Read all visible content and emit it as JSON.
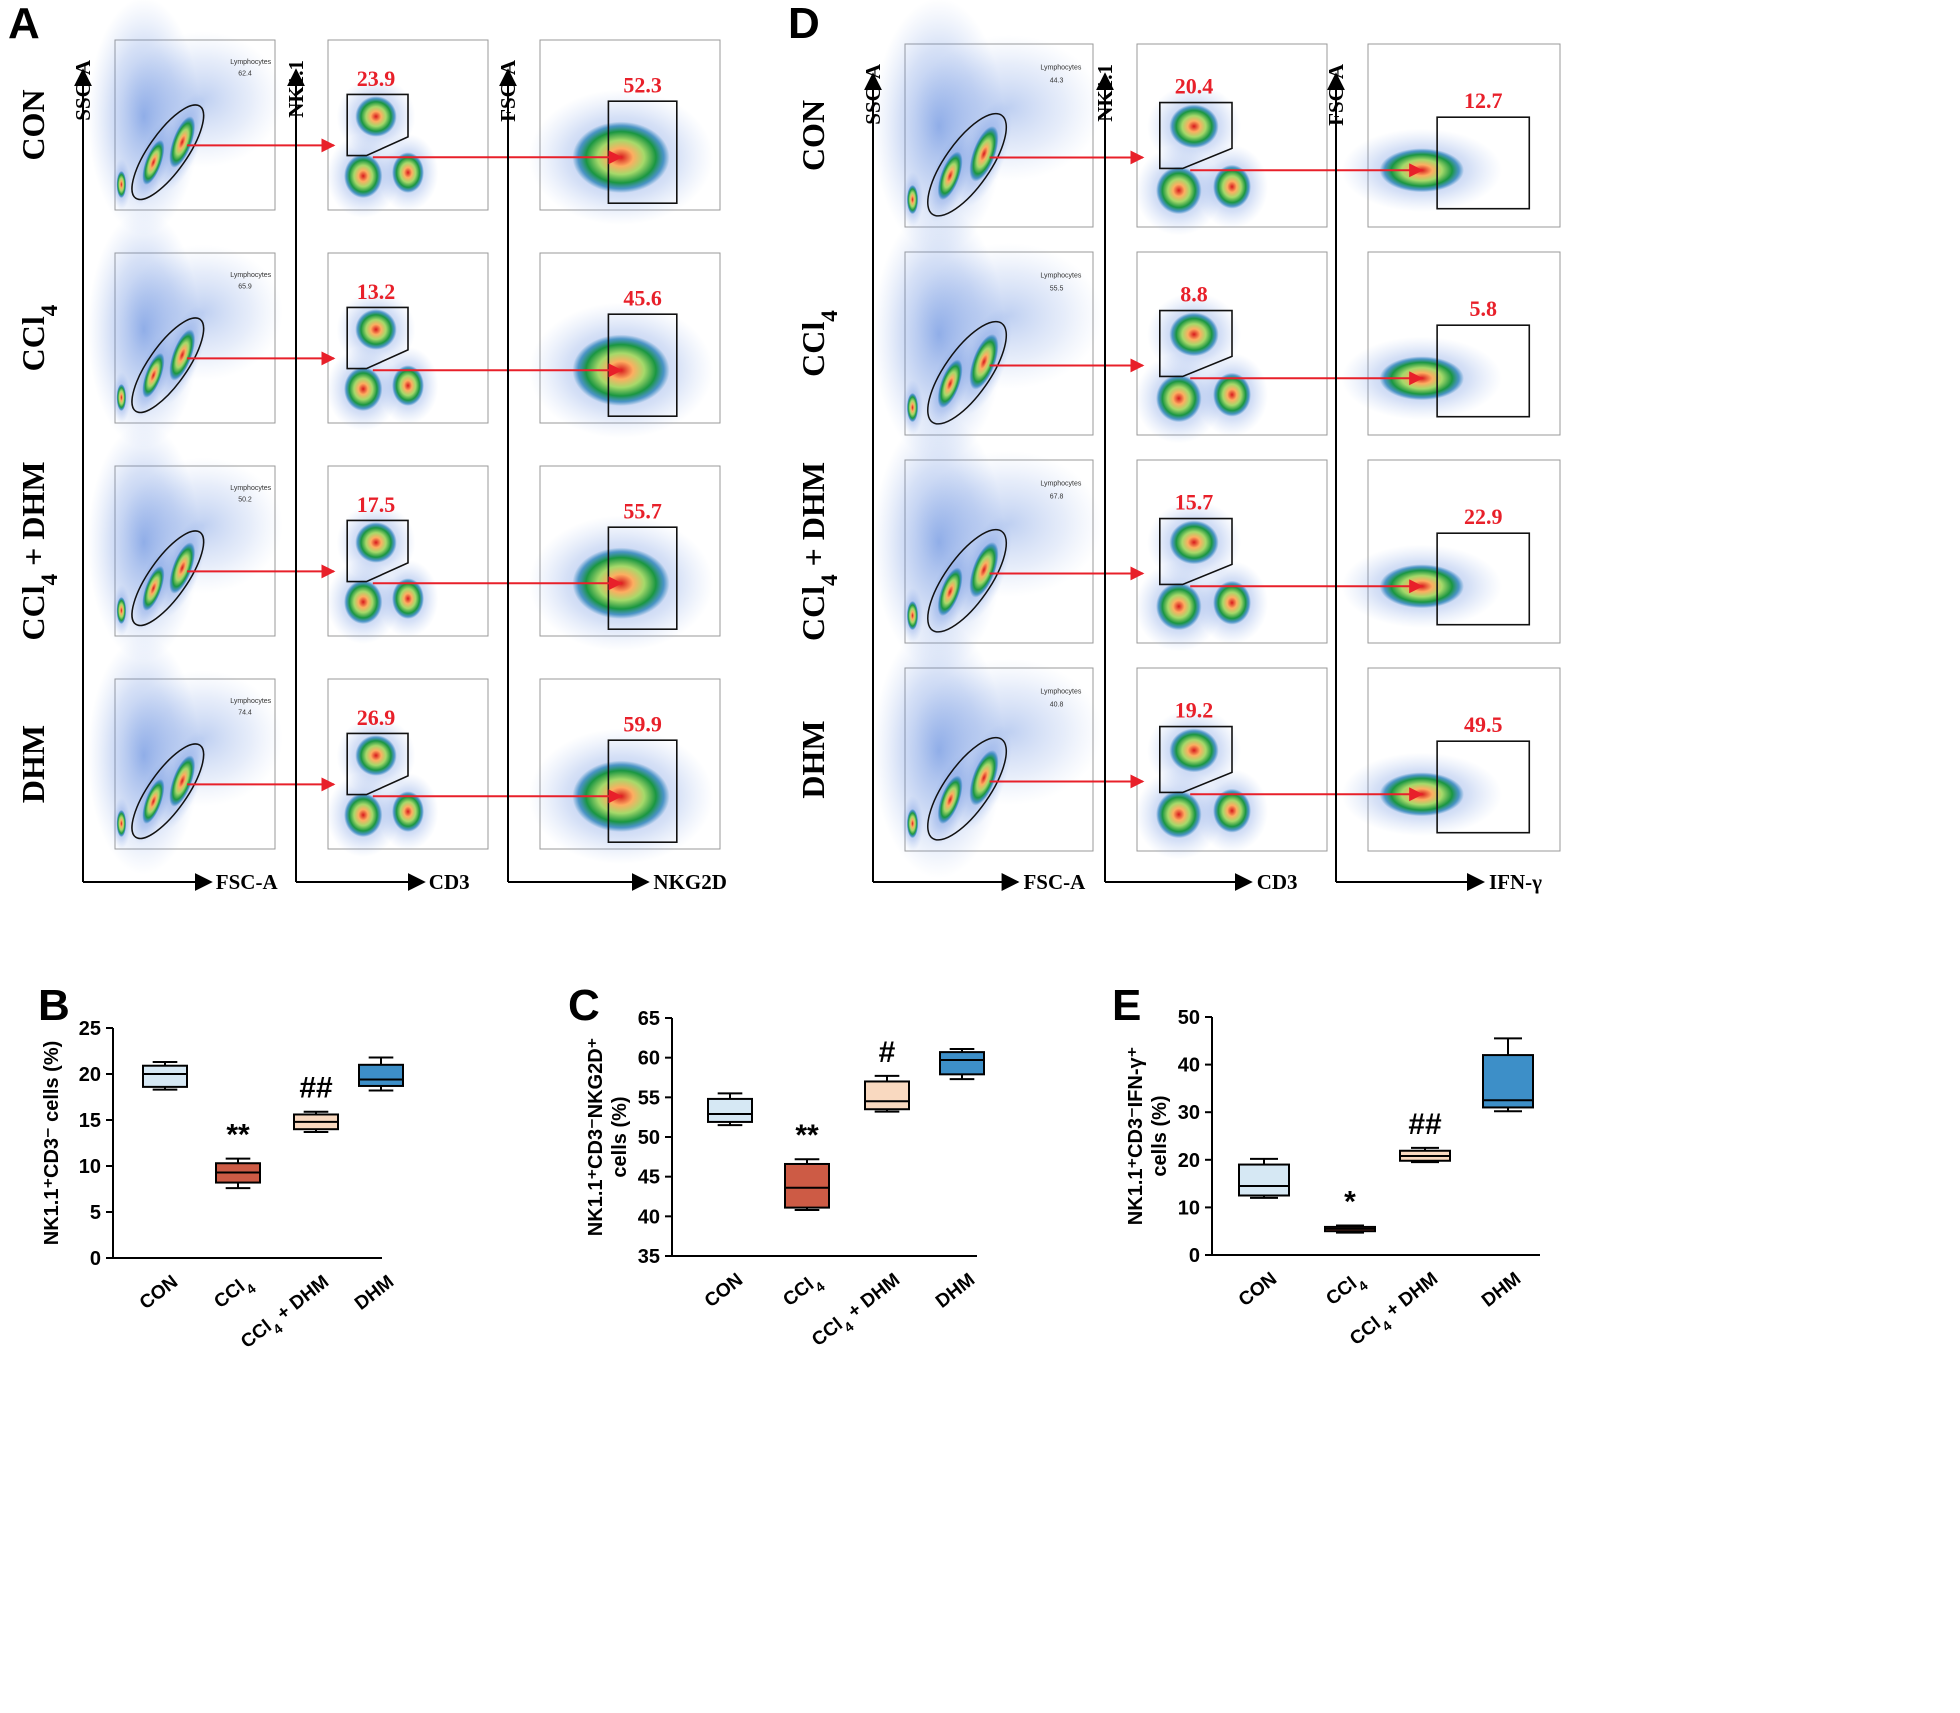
{
  "panels": {
    "A": "A",
    "D": "D",
    "B": "B",
    "C": "C",
    "E": "E"
  },
  "colors": {
    "CON": "#d6e8f4",
    "CCl4": "#cd5b45",
    "CCl4_DHM": "#f9d9c0",
    "DHM": "#3d8fc8",
    "gate_arrow": "#e8202a"
  },
  "flow_A": {
    "groups": [
      {
        "label": "CON",
        "lymph_label": "Lymphocytes",
        "lymph_pct": "62.4",
        "nk_pct": "23.9",
        "nkg2d_pct": "52.3"
      },
      {
        "label": "CCl4",
        "lymph_label": "Lymphocytes",
        "lymph_pct": "65.9",
        "nk_pct": "13.2",
        "nkg2d_pct": "45.6"
      },
      {
        "label": "CCl4 + DHM",
        "lymph_label": "Lymphocytes",
        "lymph_pct": "50.2",
        "nk_pct": "17.5",
        "nkg2d_pct": "55.7"
      },
      {
        "label": "DHM",
        "lymph_label": "Lymphocytes",
        "lymph_pct": "74.4",
        "nk_pct": "26.9",
        "nkg2d_pct": "59.9"
      }
    ],
    "axes": {
      "c1_y": "SSC-A",
      "c1_x": "FSC-A",
      "c2_y": "NK1.1",
      "c2_x": "CD3",
      "c3_y": "FSC-A",
      "c3_x": "NKG2D"
    }
  },
  "flow_D": {
    "groups": [
      {
        "label": "CON",
        "lymph_label": "Lymphocytes",
        "lymph_pct": "44.3",
        "nk_pct": "20.4",
        "ifn_pct": "12.7"
      },
      {
        "label": "CCl4",
        "lymph_label": "Lymphocytes",
        "lymph_pct": "55.5",
        "nk_pct": "8.8",
        "ifn_pct": "5.8"
      },
      {
        "label": "CCl4 + DHM",
        "lymph_label": "Lymphocytes",
        "lymph_pct": "67.8",
        "nk_pct": "15.7",
        "ifn_pct": "22.9"
      },
      {
        "label": "DHM",
        "lymph_label": "Lymphocytes",
        "lymph_pct": "40.8",
        "nk_pct": "19.2",
        "ifn_pct": "49.5"
      }
    ],
    "axes": {
      "c1_y": "SSC-A",
      "c1_x": "FSC-A",
      "c2_y": "NK1.1",
      "c2_x": "CD3",
      "c3_y": "FSC-A",
      "c3_x": "IFN-γ"
    }
  },
  "chart_data": [
    {
      "panel": "B",
      "type": "box",
      "ylabel": "NK1.1⁺CD3⁻ cells (%)",
      "ylim": [
        0,
        25
      ],
      "yticks": [
        0,
        5,
        10,
        15,
        20,
        25
      ],
      "categories": [
        "CON",
        "CCl4",
        "CCl4 + DHM",
        "DHM"
      ],
      "boxes": [
        {
          "min": 18.3,
          "q1": 18.6,
          "median": 20.0,
          "q3": 20.9,
          "max": 21.3,
          "sig": ""
        },
        {
          "min": 7.6,
          "q1": 8.2,
          "median": 9.3,
          "q3": 10.3,
          "max": 10.8,
          "sig": "**"
        },
        {
          "min": 13.7,
          "q1": 14.0,
          "median": 14.8,
          "q3": 15.6,
          "max": 15.9,
          "sig": "##"
        },
        {
          "min": 18.2,
          "q1": 18.7,
          "median": 19.4,
          "q3": 21.0,
          "max": 21.8,
          "sig": ""
        }
      ]
    },
    {
      "panel": "C",
      "type": "box",
      "ylabel_line1": "NK1.1⁺CD3⁻NKG2D⁺",
      "ylabel_line2": "cells (%)",
      "ylim": [
        35,
        65
      ],
      "yticks": [
        35,
        40,
        45,
        50,
        55,
        60,
        65
      ],
      "categories": [
        "CON",
        "CCl4",
        "CCl4 + DHM",
        "DHM"
      ],
      "boxes": [
        {
          "min": 51.5,
          "q1": 51.9,
          "median": 52.9,
          "q3": 54.8,
          "max": 55.5,
          "sig": ""
        },
        {
          "min": 40.8,
          "q1": 41.1,
          "median": 43.6,
          "q3": 46.6,
          "max": 47.2,
          "sig": "**"
        },
        {
          "min": 53.2,
          "q1": 53.5,
          "median": 54.5,
          "q3": 57.0,
          "max": 57.7,
          "sig": "#"
        },
        {
          "min": 57.3,
          "q1": 57.9,
          "median": 59.7,
          "q3": 60.7,
          "max": 61.1,
          "sig": ""
        }
      ]
    },
    {
      "panel": "E",
      "type": "box",
      "ylabel_line1": "NK1.1⁺CD3⁻IFN-γ⁺",
      "ylabel_line2": "cells (%)",
      "ylim": [
        0,
        50
      ],
      "yticks": [
        0,
        10,
        20,
        30,
        40,
        50
      ],
      "categories": [
        "CON",
        "CCl4",
        "CCl4 + DHM",
        "DHM"
      ],
      "boxes": [
        {
          "min": 12.0,
          "q1": 12.5,
          "median": 14.5,
          "q3": 19.0,
          "max": 20.2,
          "sig": ""
        },
        {
          "min": 4.7,
          "q1": 5.0,
          "median": 5.5,
          "q3": 5.9,
          "max": 6.2,
          "sig": "*"
        },
        {
          "min": 19.5,
          "q1": 19.8,
          "median": 20.8,
          "q3": 21.9,
          "max": 22.5,
          "sig": "##"
        },
        {
          "min": 30.2,
          "q1": 31.0,
          "median": 32.5,
          "q3": 42.0,
          "max": 45.5,
          "sig": ""
        }
      ]
    }
  ]
}
